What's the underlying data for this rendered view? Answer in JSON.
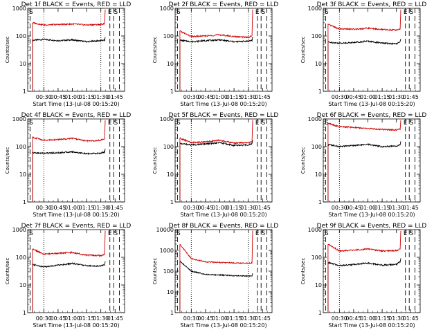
{
  "figure": {
    "background": "#ffffff",
    "axis_color": "#000000",
    "events_color": "#000000",
    "lld_color": "#cc0000"
  },
  "chart_data": [
    {
      "type": "line",
      "title": "Det 1f  BLACK = Events, RED = LLD",
      "ylabel": "Counts/sec",
      "xlabel": "Start Time (13-Jul-08 00:15:20)",
      "x_ticks": [
        "00:30",
        "00:45",
        "01:00",
        "01:15",
        "01:30",
        "01:45"
      ],
      "y_ticks": [
        "1",
        "10",
        "100",
        "1000"
      ],
      "ylim": [
        1,
        1000
      ],
      "yscale": "log",
      "markers": [
        "E",
        "S"
      ],
      "dotted_lines": [
        "00:30",
        "01:30"
      ],
      "series": [
        {
          "name": "Events",
          "color": "#000000",
          "x": [
            "00:18",
            "00:30",
            "00:45",
            "01:00",
            "01:15",
            "01:30",
            "01:34"
          ],
          "values": [
            70,
            75,
            68,
            72,
            62,
            68,
            70
          ]
        },
        {
          "name": "LLD",
          "color": "#cc0000",
          "x": [
            "00:18",
            "00:30",
            "00:45",
            "01:00",
            "01:15",
            "01:30",
            "01:34"
          ],
          "values": [
            300,
            250,
            260,
            270,
            250,
            260,
            280
          ]
        }
      ]
    },
    {
      "type": "line",
      "title": "Det 2f  BLACK = Events, RED = LLD",
      "ylabel": "Counts/sec",
      "xlabel": "Start Time (13-Jul-08 00:15:20)",
      "x_ticks": [
        "00:30",
        "00:45",
        "01:00",
        "01:15",
        "01:30",
        "01:45"
      ],
      "y_ticks": [
        "1",
        "10",
        "100",
        "1000"
      ],
      "ylim": [
        1,
        1000
      ],
      "yscale": "log",
      "markers": [
        "E",
        "S"
      ],
      "dotted_lines": [
        "00:30",
        "01:30"
      ],
      "series": [
        {
          "name": "Events",
          "color": "#000000",
          "x": [
            "00:18",
            "00:30",
            "00:45",
            "01:00",
            "01:15",
            "01:30",
            "01:34"
          ],
          "values": [
            70,
            62,
            68,
            72,
            62,
            65,
            70
          ]
        },
        {
          "name": "LLD",
          "color": "#cc0000",
          "x": [
            "00:18",
            "00:30",
            "00:45",
            "01:00",
            "01:15",
            "01:30",
            "01:34"
          ],
          "values": [
            150,
            95,
            100,
            110,
            95,
            90,
            100
          ]
        }
      ]
    },
    {
      "type": "line",
      "title": "Det 3f  BLACK = Events, RED = LLD",
      "ylabel": "Counts/sec",
      "xlabel": "Start Time (13-Jul-08 00:15:20)",
      "x_ticks": [
        "00:30",
        "00:45",
        "01:00",
        "01:15",
        "01:30",
        "01:45"
      ],
      "y_ticks": [
        "1",
        "10",
        "100",
        "1000"
      ],
      "ylim": [
        1,
        1000
      ],
      "yscale": "log",
      "markers": [
        "E",
        "S"
      ],
      "dotted_lines": [
        "00:30"
      ],
      "series": [
        {
          "name": "Events",
          "color": "#000000",
          "x": [
            "00:18",
            "00:30",
            "00:45",
            "01:00",
            "01:15",
            "01:30",
            "01:34"
          ],
          "values": [
            60,
            55,
            58,
            65,
            55,
            52,
            60
          ]
        },
        {
          "name": "LLD",
          "color": "#cc0000",
          "x": [
            "00:18",
            "00:30",
            "00:45",
            "01:00",
            "01:15",
            "01:30",
            "01:34"
          ],
          "values": [
            260,
            180,
            175,
            190,
            170,
            165,
            180
          ]
        }
      ]
    },
    {
      "type": "line",
      "title": "Det 4f  BLACK = Events, RED = LLD",
      "ylabel": "Counts/sec",
      "xlabel": "Start Time (13-Jul-08 00:15:20)",
      "x_ticks": [
        "00:30",
        "00:45",
        "01:00",
        "01:15",
        "01:30",
        "01:45"
      ],
      "y_ticks": [
        "1",
        "10",
        "100",
        "1000"
      ],
      "ylim": [
        1,
        1000
      ],
      "yscale": "log",
      "markers": [
        "E",
        "S"
      ],
      "dotted_lines": [
        "00:30"
      ],
      "series": [
        {
          "name": "Events",
          "color": "#000000",
          "x": [
            "00:18",
            "00:30",
            "00:45",
            "01:00",
            "01:15",
            "01:30",
            "01:34"
          ],
          "values": [
            60,
            58,
            60,
            65,
            55,
            58,
            65
          ]
        },
        {
          "name": "LLD",
          "color": "#cc0000",
          "x": [
            "00:18",
            "00:30",
            "00:45",
            "01:00",
            "01:15",
            "01:30",
            "01:34"
          ],
          "values": [
            220,
            170,
            180,
            200,
            160,
            170,
            190
          ]
        }
      ]
    },
    {
      "type": "line",
      "title": "Det 5f  BLACK = Events, RED = LLD",
      "ylabel": "Counts/sec",
      "xlabel": "Start Time (13-Jul-08 00:15:20)",
      "x_ticks": [
        "00:30",
        "00:45",
        "01:00",
        "01:15",
        "01:30",
        "01:45"
      ],
      "y_ticks": [
        "1",
        "10",
        "100",
        "1000"
      ],
      "ylim": [
        1,
        1000
      ],
      "yscale": "log",
      "markers": [
        "E",
        "S"
      ],
      "dotted_lines": [
        "00:30"
      ],
      "series": [
        {
          "name": "Events",
          "color": "#000000",
          "x": [
            "00:18",
            "00:30",
            "00:45",
            "01:00",
            "01:15",
            "01:30",
            "01:34"
          ],
          "values": [
            130,
            115,
            125,
            140,
            110,
            115,
            130
          ]
        },
        {
          "name": "LLD",
          "color": "#cc0000",
          "x": [
            "00:18",
            "00:30",
            "00:45",
            "01:00",
            "01:15",
            "01:30",
            "01:34"
          ],
          "values": [
            200,
            140,
            150,
            170,
            135,
            140,
            150
          ]
        }
      ]
    },
    {
      "type": "line",
      "title": "Det 6f  BLACK = Events, RED = LLD",
      "ylabel": "Counts/sec",
      "xlabel": "Start Time (13-Jul-08 00:15:20)",
      "x_ticks": [
        "00:30",
        "00:45",
        "01:00",
        "01:15",
        "01:30",
        "01:45"
      ],
      "y_ticks": [
        "1",
        "10",
        "100",
        "1000"
      ],
      "ylim": [
        1,
        1000
      ],
      "yscale": "log",
      "markers": [
        "E",
        "S"
      ],
      "dotted_lines": [
        "00:30"
      ],
      "series": [
        {
          "name": "Events",
          "color": "#000000",
          "x": [
            "00:18",
            "00:30",
            "00:45",
            "01:00",
            "01:15",
            "01:30",
            "01:34"
          ],
          "values": [
            120,
            100,
            110,
            120,
            100,
            105,
            120
          ]
        },
        {
          "name": "LLD",
          "color": "#cc0000",
          "x": [
            "00:18",
            "00:30",
            "00:45",
            "01:00",
            "01:15",
            "01:30",
            "01:34"
          ],
          "values": [
            700,
            520,
            500,
            450,
            420,
            400,
            430
          ]
        }
      ]
    },
    {
      "type": "line",
      "title": "Det 7f  BLACK = Events, RED = LLD",
      "ylabel": "Counts/sec",
      "xlabel": "Start Time (13-Jul-08 00:15:20)",
      "x_ticks": [
        "00:30",
        "00:45",
        "01:00",
        "01:15",
        "01:30",
        "01:45"
      ],
      "y_ticks": [
        "1",
        "10",
        "100",
        "1000"
      ],
      "ylim": [
        1,
        1000
      ],
      "yscale": "log",
      "markers": [
        "E",
        "S"
      ],
      "dotted_lines": [
        "00:30"
      ],
      "series": [
        {
          "name": "Events",
          "color": "#000000",
          "x": [
            "00:18",
            "00:30",
            "00:45",
            "01:00",
            "01:15",
            "01:30",
            "01:34"
          ],
          "values": [
            55,
            45,
            52,
            60,
            50,
            48,
            55
          ]
        },
        {
          "name": "LLD",
          "color": "#cc0000",
          "x": [
            "00:18",
            "00:30",
            "00:45",
            "01:00",
            "01:15",
            "01:30",
            "01:34"
          ],
          "values": [
            200,
            130,
            140,
            150,
            120,
            115,
            130
          ]
        }
      ]
    },
    {
      "type": "line",
      "title": "Det 8f  BLACK = Events, RED = LLD",
      "ylabel": "Counts/sec",
      "xlabel": "Start Time (13-Jul-08 00:15:20)",
      "x_ticks": [
        "00:30",
        "00:45",
        "01:00",
        "01:15",
        "01:30",
        "01:45"
      ],
      "y_ticks": [
        "1",
        "10",
        "100",
        "1000",
        "10000"
      ],
      "ylim": [
        1,
        10000
      ],
      "yscale": "log",
      "markers": [
        "E",
        "S"
      ],
      "dotted_lines": [
        "00:30",
        "01:30"
      ],
      "series": [
        {
          "name": "Events",
          "color": "#000000",
          "x": [
            "00:18",
            "00:30",
            "00:45",
            "01:00",
            "01:15",
            "01:30",
            "01:34"
          ],
          "values": [
            300,
            100,
            70,
            65,
            60,
            58,
            60
          ]
        },
        {
          "name": "LLD",
          "color": "#cc0000",
          "x": [
            "00:18",
            "00:30",
            "00:45",
            "01:00",
            "01:15",
            "01:30",
            "01:34"
          ],
          "values": [
            2000,
            400,
            280,
            260,
            250,
            240,
            250
          ]
        }
      ]
    },
    {
      "type": "line",
      "title": "Det 9f  BLACK = Events, RED = LLD",
      "ylabel": "Counts/sec",
      "xlabel": "Start Time (13-Jul-08 00:15:20)",
      "x_ticks": [
        "00:30",
        "00:45",
        "01:00",
        "01:15",
        "01:30",
        "01:45"
      ],
      "y_ticks": [
        "1",
        "10",
        "100",
        "1000"
      ],
      "ylim": [
        1,
        1000
      ],
      "yscale": "log",
      "markers": [
        "E",
        "S"
      ],
      "dotted_lines": [
        "00:30"
      ],
      "series": [
        {
          "name": "Events",
          "color": "#000000",
          "x": [
            "00:18",
            "00:30",
            "00:45",
            "01:00",
            "01:15",
            "01:30",
            "01:34"
          ],
          "values": [
            65,
            50,
            55,
            62,
            52,
            55,
            70
          ]
        },
        {
          "name": "LLD",
          "color": "#cc0000",
          "x": [
            "00:18",
            "00:30",
            "00:45",
            "01:00",
            "01:15",
            "01:30",
            "01:34"
          ],
          "values": [
            300,
            170,
            180,
            200,
            170,
            175,
            200
          ]
        }
      ]
    }
  ]
}
